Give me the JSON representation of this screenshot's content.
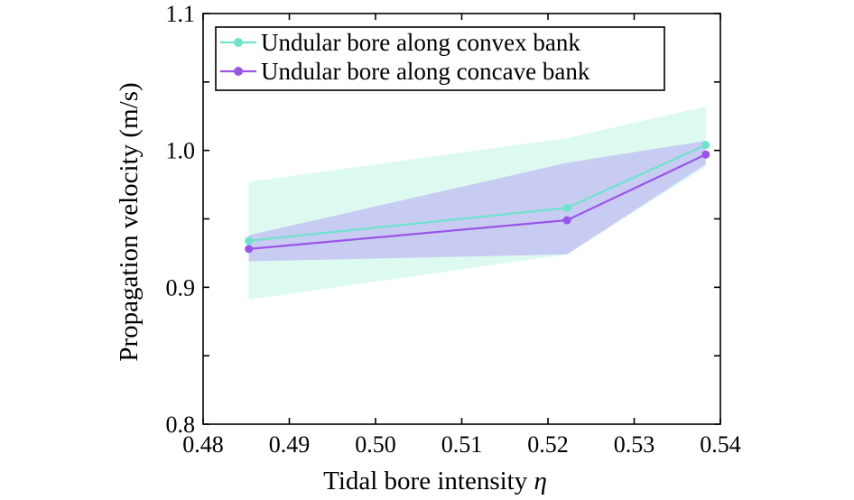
{
  "chart_data": {
    "type": "line",
    "title": "",
    "xlabel": "Tidal bore intensity",
    "xlabel_symbol": "η",
    "ylabel": "Propagation velocity (m/s)",
    "xlim": [
      0.48,
      0.54
    ],
    "ylim": [
      0.8,
      1.1
    ],
    "x_ticks": [
      {
        "value": 0.48,
        "label": "0.48"
      },
      {
        "value": 0.49,
        "label": "0.49"
      },
      {
        "value": 0.5,
        "label": "0.50"
      },
      {
        "value": 0.51,
        "label": "0.51"
      },
      {
        "value": 0.52,
        "label": "0.52"
      },
      {
        "value": 0.53,
        "label": "0.53"
      },
      {
        "value": 0.54,
        "label": "0.54"
      }
    ],
    "y_ticks": [
      {
        "value": 0.8,
        "label": "0.8"
      },
      {
        "value": 0.9,
        "label": "0.9"
      },
      {
        "value": 1.0,
        "label": "1.0"
      },
      {
        "value": 1.1,
        "label": "1.1"
      }
    ],
    "minor_y_ticks": [
      0.85,
      0.95,
      1.05
    ],
    "grid": false,
    "legend_position": "top-left",
    "series": [
      {
        "name": "Undular bore along convex bank",
        "color": "#6fe3cc",
        "band_color": "#d2f8ec",
        "x": [
          0.4853,
          0.5222,
          0.5383
        ],
        "y": [
          0.934,
          0.958,
          1.004
        ],
        "band_upper": [
          0.977,
          1.009,
          1.032
        ],
        "band_lower": [
          0.891,
          0.924,
          0.988
        ]
      },
      {
        "name": "Undular bore along concave bank",
        "color": "#9a55e8",
        "band_color": "#c4c0f2",
        "x": [
          0.4853,
          0.5222,
          0.5383
        ],
        "y": [
          0.928,
          0.949,
          0.997
        ],
        "band_upper": [
          0.938,
          0.991,
          1.007
        ],
        "band_lower": [
          0.919,
          0.924,
          0.99
        ]
      }
    ]
  }
}
